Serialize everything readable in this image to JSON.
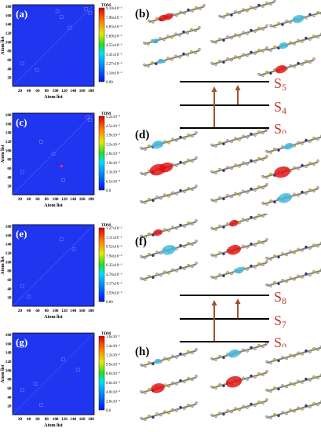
{
  "colors": {
    "map_background": "#1f35f0",
    "panel_label_bg": "#0a1fd0",
    "level_label": "#c0392b",
    "arrow": "#a0522d",
    "hole_red": "#e01010",
    "electron_cyan": "#3fb8e0"
  },
  "common": {
    "xlabel": "Atom list",
    "ylabel": "Atom list",
    "colorbar_title": "TDM",
    "x_ticks": [
      "20",
      "40",
      "60",
      "80",
      "100",
      "120",
      "140",
      "160",
      "180"
    ],
    "y_ticks": [
      "20",
      "40",
      "60",
      "80",
      "100",
      "120",
      "140",
      "160",
      "180"
    ]
  },
  "maps": [
    {
      "label": "(a)",
      "cbar_ticks": [
        "9.10x10⁻³",
        "7.96x10⁻³",
        "6.83x10⁻³",
        "5.69x10⁻³",
        "4.55x10⁻³",
        "3.41x10⁻³",
        "2.27x10⁻³",
        "1.14x10⁻³",
        "0.00"
      ]
    },
    {
      "label": "(c)",
      "cbar_ticks": [
        "5.2x10⁻³",
        "4.5x10⁻³",
        "3.9x10⁻³",
        "3.2x10⁻³",
        "2.6x10⁻³",
        "1.9x10⁻³",
        "1.3x10⁻³",
        "6.5x10⁻⁴",
        "0.0"
      ]
    },
    {
      "label": "(e)",
      "cbar_ticks": [
        "1.27x10⁻²",
        "1.11x10⁻²",
        "9.52x10⁻³",
        "7.94x10⁻³",
        "6.35x10⁻³",
        "4.76x10⁻³",
        "3.17x10⁻³",
        "1.59x10⁻³",
        "0.00"
      ]
    },
    {
      "label": "(g)",
      "cbar_ticks": [
        "1.6x10⁻²",
        "1.4x10⁻²",
        "1.2x10⁻²",
        "9.9x10⁻³",
        "8.0x10⁻³",
        "6.0x10⁻³",
        "4.0x10⁻³",
        "2.0x10⁻³",
        "0.0"
      ]
    }
  ],
  "molecule_panels": [
    {
      "label": "(b)"
    },
    {
      "label": "(d)"
    },
    {
      "label": "(f)"
    },
    {
      "label": "(h)"
    }
  ],
  "level_diagrams": [
    {
      "levels": [
        "S",
        "S",
        "S"
      ],
      "subs": [
        "5",
        "4",
        "0"
      ]
    },
    {
      "levels": [
        "S",
        "S",
        "S"
      ],
      "subs": [
        "8",
        "7",
        "0"
      ]
    }
  ]
}
